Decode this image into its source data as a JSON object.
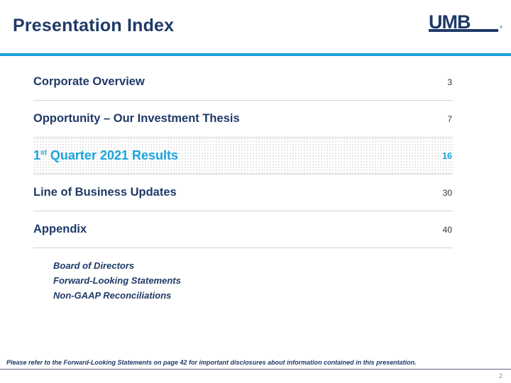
{
  "header": {
    "title": "Presentation Index",
    "logo_text": "UMB",
    "logo_mark": "®"
  },
  "index": {
    "items": [
      {
        "label": "Corporate Overview",
        "page": "3"
      },
      {
        "label": "Opportunity – Our Investment Thesis",
        "page": "7"
      },
      {
        "label_prefix": "1",
        "label_superscript": "st",
        "label_rest": " Quarter 2021 Results",
        "page": "16",
        "active": true
      },
      {
        "label": "Line of Business Updates",
        "page": "30"
      },
      {
        "label": "Appendix",
        "page": "40"
      }
    ],
    "appendix_subitems": [
      "Board of Directors",
      "Forward-Looking Statements",
      "Non-GAAP Reconciliations"
    ]
  },
  "footer": {
    "disclaimer": "Please refer to the Forward-Looking Statements on page 42 for important disclosures about information contained in this presentation.",
    "page_number": "2"
  },
  "colors": {
    "navy": "#1f3a68",
    "accent_blue": "#1aa3dc"
  }
}
